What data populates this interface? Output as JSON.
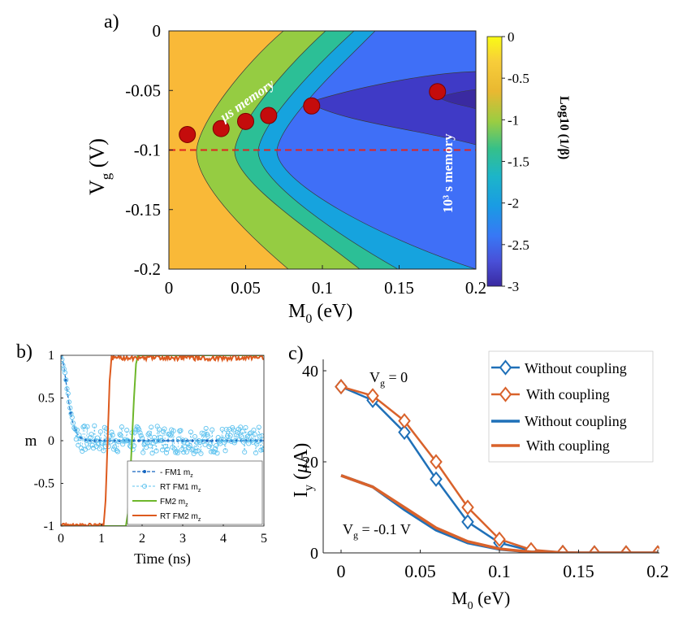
{
  "chart_data": [
    {
      "panel": "a)",
      "type": "heatmap",
      "xlabel": "M",
      "xlabel_sub": "0",
      "xlabel_unit": " (eV)",
      "ylabel": "V",
      "ylabel_sub": "g",
      "ylabel_unit": "  (V)",
      "xlim": [
        0,
        0.2
      ],
      "ylim": [
        -0.2,
        0
      ],
      "xticks": [
        0,
        0.05,
        0.1,
        0.15,
        0.2
      ],
      "xtick_labels": [
        "0",
        "0.05",
        "0.1",
        "0.15",
        "0.2"
      ],
      "yticks": [
        0,
        -0.05,
        -0.1,
        -0.15,
        -0.2
      ],
      "ytick_labels": [
        "0",
        "-0.05",
        "-0.1",
        "-0.15",
        "-0.2"
      ],
      "colorbar": {
        "label": "Log10 (1/β)",
        "range": [
          -3,
          0
        ],
        "ticks": [
          0,
          -0.5,
          -1,
          -1.5,
          -2,
          -2.5,
          -3
        ],
        "tick_labels": [
          "0",
          "-0.5",
          "-1",
          "-1.5",
          "-2",
          "-2.5",
          "-3"
        ]
      },
      "contour_levels": [
        {
          "level": -0.5,
          "color": "#f9b938",
          "boundary_x_at_vg": [
            [
              0,
              0.075
            ],
            [
              -0.1,
              0.018
            ],
            [
              -0.2,
              0.078
            ]
          ]
        },
        {
          "level": -1.0,
          "color": "#95cc42",
          "boundary_x_at_vg": [
            [
              0,
              0.103
            ],
            [
              -0.1,
              0.043
            ],
            [
              -0.2,
              0.125
            ]
          ]
        },
        {
          "level": -1.5,
          "color": "#2cbf96",
          "boundary_x_at_vg": [
            [
              0,
              0.121
            ],
            [
              -0.1,
              0.058
            ],
            [
              -0.2,
              0.15
            ]
          ]
        },
        {
          "level": -2.0,
          "color": "#16a3de",
          "boundary_x_at_vg": [
            [
              0,
              0.135
            ],
            [
              -0.1,
              0.071
            ],
            [
              -0.2,
              0.172
            ]
          ]
        },
        {
          "level": -2.5,
          "color": "#3f6ff7",
          "boundary_x_at_vg": [
            [
              0,
              0.15
            ],
            [
              -0.1,
              0.085
            ],
            [
              -0.2,
              0.2
            ]
          ]
        },
        {
          "level": -3.0,
          "color": "#3f3ac6",
          "region": "pocket 0.09-0.2 eV around Vg -0.045"
        }
      ],
      "markers": [
        {
          "x": 0.012,
          "y": -0.087
        },
        {
          "x": 0.034,
          "y": -0.082
        },
        {
          "x": 0.05,
          "y": -0.076
        },
        {
          "x": 0.065,
          "y": -0.071
        },
        {
          "x": 0.093,
          "y": -0.063
        },
        {
          "x": 0.175,
          "y": -0.051
        }
      ],
      "marker_color": "#c40c0c",
      "dashed_line": {
        "y": -0.1,
        "color": "#e0241f"
      },
      "annotations": [
        "μs memory",
        "10³ s memory"
      ]
    },
    {
      "panel": "b)",
      "type": "line",
      "xlabel": "Time (ns)",
      "ylabel": "m",
      "xlim": [
        0,
        5
      ],
      "ylim": [
        -1,
        1
      ],
      "xticks": [
        0,
        1,
        2,
        3,
        4,
        5
      ],
      "xtick_labels": [
        "0",
        "1",
        "2",
        "3",
        "4",
        "5"
      ],
      "yticks": [
        1,
        0.5,
        0,
        -0.5,
        -1
      ],
      "ytick_labels": [
        "1",
        "0.5",
        "0",
        "-0.5",
        "-1"
      ],
      "series": [
        {
          "name": "FM1",
          "legend_prefix": "- ",
          "sub": "z",
          "color": "#1565c0",
          "style": "dashed-dots",
          "x": [
            0,
            0.05,
            0.1,
            0.15,
            0.2,
            0.25,
            0.3,
            0.35,
            0.4,
            0.5,
            0.6,
            0.8,
            1,
            1.5,
            2,
            3,
            4,
            5
          ],
          "y": [
            1,
            0.93,
            0.78,
            0.6,
            0.43,
            0.3,
            0.2,
            0.13,
            0.08,
            0.03,
            0.01,
            0,
            0,
            0,
            0,
            0,
            0,
            0
          ]
        },
        {
          "name": "RT FM1",
          "sub": "z",
          "color": "#5fc3ef",
          "style": "noisy-circles",
          "x": [
            0,
            0.1,
            0.2,
            0.3,
            0.4,
            0.5,
            5
          ],
          "y": [
            1,
            0.8,
            0.45,
            0.2,
            0.07,
            0.02,
            0
          ]
        },
        {
          "name": "FM2",
          "sub": "z",
          "color": "#6eb72b",
          "style": "solid",
          "x": [
            0,
            1.6,
            1.65,
            1.7,
            1.75,
            1.8,
            1.85,
            1.9,
            5
          ],
          "y": [
            -1,
            -1,
            -0.85,
            -0.5,
            0,
            0.5,
            0.9,
            1,
            1
          ]
        },
        {
          "name": "RT FM2",
          "sub": "z",
          "color": "#dd5a1e",
          "style": "noisy-solid",
          "x": [
            0,
            1.05,
            1.1,
            1.15,
            1.2,
            1.25,
            5
          ],
          "y": [
            -1,
            -1,
            -0.7,
            0,
            0.7,
            1,
            1
          ]
        }
      ]
    },
    {
      "panel": "c)",
      "type": "line",
      "xlabel": "M",
      "xlabel_sub": "0",
      "xlabel_unit": " (eV)",
      "ylabel": "I",
      "ylabel_sub": "y",
      "ylabel_unit_pre": " (",
      "ylabel_unit_mu": "μ",
      "ylabel_unit_post": "A)",
      "xlim": [
        0,
        0.2
      ],
      "ylim": [
        0,
        40
      ],
      "xticks": [
        0,
        0.05,
        0.1,
        0.15,
        0.2
      ],
      "xtick_labels": [
        "0",
        "0.05",
        "0.1",
        "0.15",
        "0.2"
      ],
      "yticks": [
        0,
        20,
        40
      ],
      "ytick_labels": [
        "0",
        "20",
        "40"
      ],
      "x": [
        0,
        0.02,
        0.04,
        0.06,
        0.08,
        0.1,
        0.12,
        0.14,
        0.16,
        0.18,
        0.2
      ],
      "series": [
        {
          "name": "Without coupling",
          "group": "Vg = 0",
          "color": "#1f70b8",
          "marker": "diamond",
          "values": [
            36.5,
            33.5,
            26.5,
            16.2,
            6.8,
            2.2,
            0.5,
            0.1,
            0,
            0,
            0
          ]
        },
        {
          "name": "With coupling",
          "group": "Vg = 0",
          "color": "#d9622b",
          "marker": "diamond",
          "values": [
            36.5,
            34.5,
            29,
            20,
            10,
            3,
            0.7,
            0.1,
            0,
            0,
            0
          ]
        },
        {
          "name": "Without coupling",
          "group": "Vg = -0.1 V",
          "color": "#1f70b8",
          "marker": "none",
          "values": [
            17,
            14.5,
            9.5,
            5,
            2.2,
            0.8,
            0.2,
            0,
            0,
            0,
            0
          ]
        },
        {
          "name": "With coupling",
          "group": "Vg = -0.1 V",
          "color": "#d9622b",
          "marker": "none",
          "values": [
            17,
            14.5,
            10,
            5.5,
            2.5,
            0.9,
            0.2,
            0,
            0,
            0,
            0
          ]
        }
      ],
      "annotations": {
        "vg0_main": "V",
        "vg0_sub": "g",
        "vg0_rest": " = 0",
        "vg1_main": "V",
        "vg1_sub": "g",
        "vg1_rest": " = -0.1 V"
      }
    }
  ]
}
